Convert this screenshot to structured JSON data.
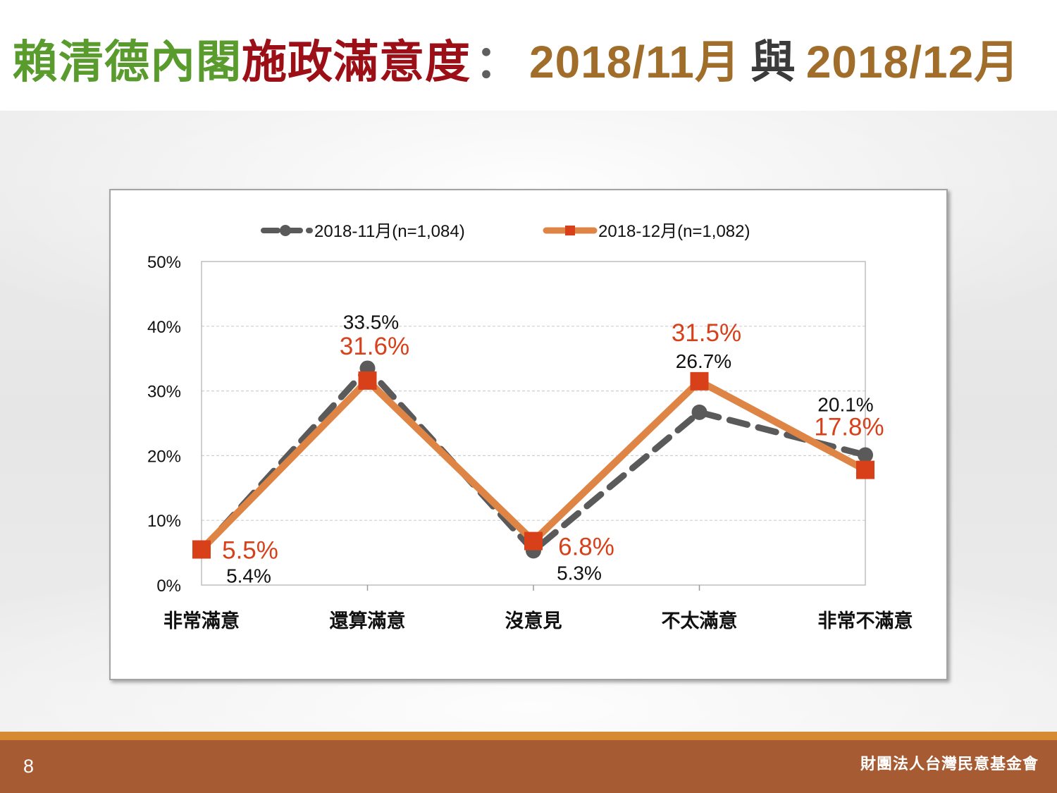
{
  "title": {
    "part1": "賴清德內閣",
    "part2": "施政滿意度",
    "sep": "：",
    "part3": "2018/11月",
    "part4": "與",
    "part5": "2018/12月"
  },
  "colors": {
    "title_green": "#5A9B2E",
    "title_red": "#9C0F17",
    "title_sep": "#5f5f5f",
    "title_brown": "#A06E2A",
    "title_dark": "#3b3b3b",
    "footer_line": "#D68A31",
    "footer_bar": "#A65B33"
  },
  "chart_data": {
    "type": "line",
    "categories": [
      "非常滿意",
      "還算滿意",
      "沒意見",
      "不太滿意",
      "非常不滿意"
    ],
    "yticks": [
      "0%",
      "10%",
      "20%",
      "30%",
      "40%",
      "50%"
    ],
    "ylim": [
      0,
      50
    ],
    "grid": true,
    "legend": "top",
    "series": [
      {
        "name": "2018-11月(n=1,084)",
        "values": [
          5.4,
          33.5,
          5.3,
          26.7,
          20.1
        ],
        "line_color": "#5A5A5A",
        "marker_color": "#5A5A5A",
        "label_color": "#111111",
        "line_style": "dashed",
        "marker": "circle"
      },
      {
        "name": "2018-12月(n=1,082)",
        "values": [
          5.5,
          31.6,
          6.8,
          31.5,
          17.8
        ],
        "line_color": "#DE8546",
        "marker_color": "#D8401A",
        "label_color": "#D8401A",
        "line_style": "solid",
        "marker": "square"
      }
    ]
  },
  "footer": {
    "page_number": "8",
    "organization": "財團法人台灣民意基金會"
  }
}
